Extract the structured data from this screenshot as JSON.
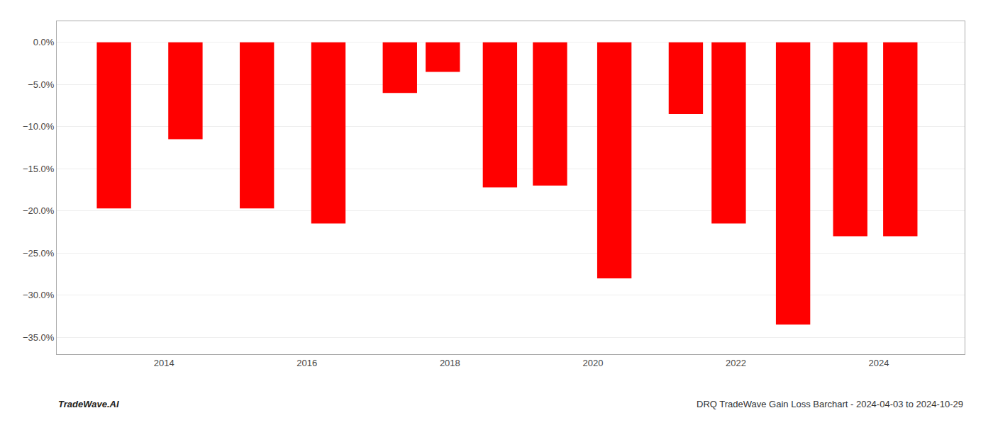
{
  "chart_data": {
    "type": "bar",
    "x": [
      2013.3,
      2014.3,
      2015.3,
      2016.3,
      2017.3,
      2017.9,
      2018.7,
      2019.4,
      2020.3,
      2021.3,
      2021.9,
      2022.8,
      2023.6,
      2024.3
    ],
    "values": [
      -0.197,
      -0.115,
      -0.197,
      -0.215,
      -0.06,
      -0.035,
      -0.172,
      -0.17,
      -0.28,
      -0.085,
      -0.215,
      -0.335,
      -0.23,
      -0.23
    ],
    "color": "#ff0000",
    "xlim": [
      2012.5,
      2025.2
    ],
    "xticks": [
      2014,
      2016,
      2018,
      2020,
      2022,
      2024
    ],
    "ylim": [
      -0.37,
      0.025
    ],
    "yticks": [
      {
        "value": 0.0,
        "label": "0.0%"
      },
      {
        "value": -0.05,
        "label": "−5.0%"
      },
      {
        "value": -0.1,
        "label": "−10.0%"
      },
      {
        "value": -0.15,
        "label": "−15.0%"
      },
      {
        "value": -0.2,
        "label": "−20.0%"
      },
      {
        "value": -0.25,
        "label": "−25.0%"
      },
      {
        "value": -0.3,
        "label": "−30.0%"
      },
      {
        "value": -0.35,
        "label": "−35.0%"
      }
    ],
    "grid": true,
    "annotations": [
      "TradeWave.AI",
      "DRQ TradeWave Gain Loss Barchart - 2024-04-03 to 2024-10-29"
    ]
  }
}
